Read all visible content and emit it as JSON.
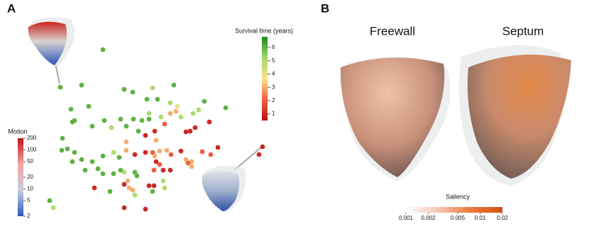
{
  "panel_labels": [
    "A",
    "B"
  ],
  "chart_data": [
    {
      "type": "scatter",
      "colorbar_title": "Survival time (years)",
      "x": [
        85,
        25,
        55,
        115,
        127,
        155,
        162,
        185,
        147,
        258,
        228,
        180,
        190,
        180,
        188,
        195,
        208,
        215,
        235,
        212,
        220,
        40,
        65,
        87,
        110,
        128,
        150,
        150,
        45,
        42,
        70,
        97,
        118,
        135,
        140,
        167,
        172,
        202,
        158,
        145,
        160,
        118,
        28,
        27,
        35,
        45,
        55,
        42,
        70,
        85,
        100,
        118,
        130,
        108,
        145,
        155,
        165,
        175,
        181,
        195,
        202,
        210,
        225,
        237,
        247,
        310,
        305,
        158,
        160,
        165,
        170,
        180,
        157,
        205,
        210,
        60,
        78,
        115,
        100,
        130,
        133,
        120,
        122,
        127,
        115,
        95,
        73,
        130,
        150,
        157,
        155,
        10,
        15,
        115,
        145,
        170,
        172,
        85,
        110
      ],
      "y": [
        230,
        177,
        180,
        174,
        170,
        176,
        160,
        180,
        160,
        148,
        157,
        155,
        150,
        140,
        143,
        135,
        115,
        120,
        128,
        140,
        145,
        146,
        150,
        130,
        132,
        132,
        140,
        132,
        130,
        128,
        122,
        120,
        122,
        115,
        130,
        135,
        125,
        114,
        115,
        109,
        102,
        100,
        105,
        88,
        90,
        85,
        75,
        72,
        72,
        80,
        85,
        88,
        82,
        78,
        85,
        85,
        87,
        88,
        82,
        87,
        75,
        72,
        86,
        82,
        92,
        93,
        82,
        80,
        72,
        68,
        60,
        60,
        60,
        70,
        65,
        60,
        62,
        57,
        55,
        57,
        52,
        45,
        35,
        32,
        40,
        30,
        35,
        25,
        38,
        38,
        30,
        17,
        7,
        7,
        5,
        45,
        35,
        55,
        60
      ],
      "values": [
        6,
        6,
        6,
        6,
        6,
        5,
        6,
        6,
        6,
        6,
        6,
        5,
        4,
        3,
        3,
        5,
        1,
        1,
        1,
        5,
        5,
        6,
        6,
        6,
        6,
        6,
        5,
        6,
        6,
        6,
        6,
        5,
        6,
        6,
        6,
        5,
        2,
        1,
        1,
        1,
        3,
        3,
        6,
        6,
        6,
        6,
        6,
        6,
        6,
        6,
        5,
        3,
        1,
        6,
        1,
        2,
        3,
        3,
        2,
        1,
        3,
        3,
        2,
        2,
        1,
        1,
        1,
        3,
        1,
        2,
        1,
        1,
        2,
        2,
        3,
        6,
        6,
        5,
        6,
        6,
        6,
        3,
        3,
        3,
        1,
        6,
        1,
        5,
        1,
        1,
        6,
        6,
        5,
        1,
        1,
        5,
        5,
        6,
        6
      ],
      "xlim": [
        0,
        320
      ],
      "ylim": [
        0,
        240
      ],
      "clim": [
        0.5,
        6.8
      ],
      "cticks": [
        1,
        2,
        3,
        4,
        5,
        6
      ],
      "colors": [
        "#b5121b",
        "#f0603e",
        "#fbe38c",
        "#a3d86a",
        "#178a1a"
      ]
    },
    {
      "type": "colorbar",
      "orientation": "vertical",
      "title": "Motion",
      "log": true,
      "lim": [
        2,
        200
      ],
      "ticks": [
        2,
        5,
        10,
        20,
        50,
        100,
        200
      ],
      "colors": [
        "#2b55c4",
        "#c9d1dc",
        "#f3a3a3",
        "#c0141b"
      ]
    },
    {
      "type": "colorbar",
      "orientation": "horizontal",
      "title": "Saliency",
      "log": true,
      "lim": [
        0.001,
        0.02
      ],
      "ticks": [
        0.001,
        0.002,
        0.005,
        0.01,
        0.02
      ],
      "colors": [
        "#ffffff",
        "#f6c7b4",
        "#ea7a3c",
        "#d2500e"
      ]
    }
  ],
  "views": [
    "Freewall",
    "Septum"
  ]
}
